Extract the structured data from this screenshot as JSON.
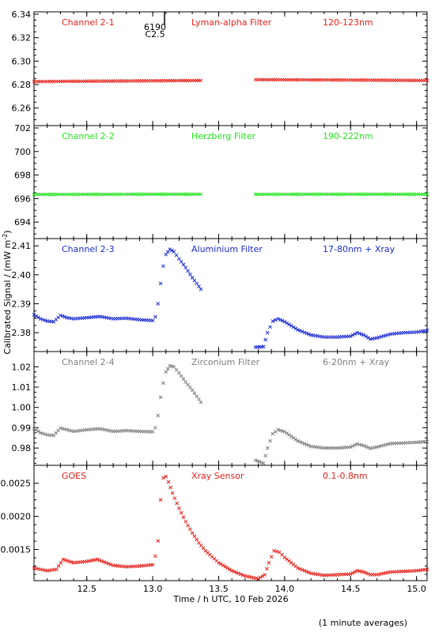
{
  "footer_note": "(1 minute averages)",
  "y_axis_title": "Calibrated Signal / (mW m",
  "y_axis_title_sup": "-2",
  "y_axis_title_end": ")",
  "x_axis_title": "Time / h UTC, 10 Feb 2026",
  "flare_marker": {
    "number": "6190",
    "class": "C2.5"
  },
  "colors": {
    "red": "#e8201a",
    "green": "#22e41e",
    "blue": "#1c2bd6",
    "gray": "#808080"
  },
  "chart_data": {
    "type": "scatter",
    "x_axis": {
      "range": [
        12.1,
        15.08
      ],
      "ticks": [
        "12.5",
        "13.0",
        "13.5",
        "14.0",
        "14.5",
        "15.0"
      ],
      "tick_values": [
        12.5,
        13.0,
        13.5,
        14.0,
        14.5,
        15.0
      ]
    },
    "panels": [
      {
        "id": "ch21",
        "label_left": "Channel 2-1",
        "label_mid": "Lyman-alpha Filter",
        "label_right": "120-123nm",
        "color": "red",
        "y_range": [
          6.245,
          6.342
        ],
        "y_ticks": [
          "6.26",
          "6.28",
          "6.30",
          "6.32",
          "6.34"
        ],
        "y_tick_values": [
          6.26,
          6.28,
          6.3,
          6.32,
          6.34
        ],
        "points": [
          [
            12.1,
            6.2825
          ],
          [
            12.4,
            6.2828
          ],
          [
            12.7,
            6.283
          ],
          [
            13.0,
            6.2832
          ],
          [
            13.38,
            6.2835
          ],
          [
            13.39,
            null
          ],
          [
            13.77,
            null
          ],
          [
            13.78,
            6.2842
          ],
          [
            14.2,
            6.284
          ],
          [
            14.6,
            6.2838
          ],
          [
            15.08,
            6.2835
          ]
        ]
      },
      {
        "id": "ch22",
        "label_left": "Channel 2-2",
        "label_mid": "Herzberg Filter",
        "label_right": "190-222nm",
        "color": "green",
        "y_range": [
          692.6,
          702.2
        ],
        "y_ticks": [
          "694",
          "696",
          "698",
          "700",
          "702"
        ],
        "y_tick_values": [
          694,
          696,
          698,
          700,
          702
        ],
        "points": [
          [
            12.1,
            696.35
          ],
          [
            12.6,
            696.36
          ],
          [
            13.0,
            696.37
          ],
          [
            13.38,
            696.37
          ],
          [
            13.39,
            null
          ],
          [
            13.77,
            null
          ],
          [
            13.78,
            696.36
          ],
          [
            14.3,
            696.37
          ],
          [
            15.08,
            696.37
          ]
        ]
      },
      {
        "id": "ch23",
        "label_left": "Channel 2-3",
        "label_mid": "Aluminium Filter",
        "label_right": "17-80nm + Xray",
        "color": "blue",
        "y_range": [
          2.3735,
          2.4125
        ],
        "y_ticks": [
          "2.38",
          "2.39",
          "2.40",
          "2.41"
        ],
        "y_tick_values": [
          2.38,
          2.39,
          2.4,
          2.41
        ],
        "points": [
          [
            12.1,
            2.3862
          ],
          [
            12.15,
            2.3848
          ],
          [
            12.2,
            2.384
          ],
          [
            12.25,
            2.3838
          ],
          [
            12.3,
            2.386
          ],
          [
            12.35,
            2.3852
          ],
          [
            12.4,
            2.3848
          ],
          [
            12.5,
            2.3852
          ],
          [
            12.6,
            2.3856
          ],
          [
            12.7,
            2.3848
          ],
          [
            12.8,
            2.385
          ],
          [
            12.9,
            2.3845
          ],
          [
            13.0,
            2.3842
          ],
          [
            13.02,
            2.3855
          ],
          [
            13.04,
            2.39
          ],
          [
            13.06,
            2.397
          ],
          [
            13.08,
            2.403
          ],
          [
            13.1,
            2.407
          ],
          [
            13.13,
            2.4088
          ],
          [
            13.16,
            2.408
          ],
          [
            13.2,
            2.4055
          ],
          [
            13.25,
            2.4025
          ],
          [
            13.3,
            2.399
          ],
          [
            13.35,
            2.396
          ],
          [
            13.38,
            2.394
          ],
          [
            13.39,
            null
          ],
          [
            13.77,
            null
          ],
          [
            13.78,
            2.375
          ],
          [
            13.84,
            2.3752
          ],
          [
            13.87,
            2.38
          ],
          [
            13.91,
            2.384
          ],
          [
            13.95,
            2.3848
          ],
          [
            14.0,
            2.3838
          ],
          [
            14.1,
            2.381
          ],
          [
            14.2,
            2.3792
          ],
          [
            14.3,
            2.3785
          ],
          [
            14.4,
            2.3785
          ],
          [
            14.5,
            2.3788
          ],
          [
            14.55,
            2.38
          ],
          [
            14.6,
            2.3792
          ],
          [
            14.65,
            2.3778
          ],
          [
            14.7,
            2.3782
          ],
          [
            14.8,
            2.3795
          ],
          [
            14.9,
            2.38
          ],
          [
            15.0,
            2.3802
          ],
          [
            15.08,
            2.3808
          ]
        ]
      },
      {
        "id": "ch24",
        "label_left": "Channel 2-4",
        "label_mid": "Zirconium Filter",
        "label_right": "6-20nm + Xray",
        "color": "gray",
        "y_range": [
          0.9715,
          1.0275
        ],
        "y_ticks": [
          "0.98",
          "0.99",
          "1.00",
          "1.01",
          "1.02"
        ],
        "y_tick_values": [
          0.98,
          0.99,
          1.0,
          1.01,
          1.02
        ],
        "points": [
          [
            12.1,
            0.9895
          ],
          [
            12.15,
            0.9875
          ],
          [
            12.2,
            0.9865
          ],
          [
            12.25,
            0.9862
          ],
          [
            12.3,
            0.9898
          ],
          [
            12.35,
            0.989
          ],
          [
            12.4,
            0.9882
          ],
          [
            12.5,
            0.989
          ],
          [
            12.6,
            0.9895
          ],
          [
            12.7,
            0.9882
          ],
          [
            12.8,
            0.9886
          ],
          [
            12.9,
            0.9882
          ],
          [
            13.0,
            0.988
          ],
          [
            13.02,
            0.99
          ],
          [
            13.04,
            0.996
          ],
          [
            13.06,
            1.005
          ],
          [
            13.08,
            1.012
          ],
          [
            13.1,
            1.0175
          ],
          [
            13.13,
            1.0205
          ],
          [
            13.16,
            1.02
          ],
          [
            13.2,
            1.017
          ],
          [
            13.25,
            1.0125
          ],
          [
            13.3,
            1.0085
          ],
          [
            13.35,
            1.004
          ],
          [
            13.38,
            1.001
          ],
          [
            13.39,
            null
          ],
          [
            13.77,
            null
          ],
          [
            13.78,
            0.974
          ],
          [
            13.84,
            0.9725
          ],
          [
            13.87,
            0.98
          ],
          [
            13.91,
            0.987
          ],
          [
            13.95,
            0.989
          ],
          [
            14.0,
            0.988
          ],
          [
            14.1,
            0.9835
          ],
          [
            14.2,
            0.9808
          ],
          [
            14.3,
            0.98
          ],
          [
            14.4,
            0.98
          ],
          [
            14.5,
            0.9805
          ],
          [
            14.55,
            0.982
          ],
          [
            14.6,
            0.9812
          ],
          [
            14.65,
            0.9798
          ],
          [
            14.7,
            0.9805
          ],
          [
            14.8,
            0.9822
          ],
          [
            14.9,
            0.9825
          ],
          [
            15.0,
            0.9828
          ],
          [
            15.08,
            0.9832
          ]
        ]
      },
      {
        "id": "goes",
        "label_left": "GOES",
        "label_mid": "Xray Sensor",
        "label_right": "0.1-0.8nm",
        "color": "red",
        "y_range": [
          0.00103,
          0.00277
        ],
        "y_ticks": [
          "0.0015",
          "0.0020",
          "0.0025"
        ],
        "y_tick_values": [
          0.0015,
          0.002,
          0.0025
        ],
        "points": [
          [
            12.1,
            0.00122
          ],
          [
            12.2,
            0.00118
          ],
          [
            12.27,
            0.0012
          ],
          [
            12.32,
            0.00135
          ],
          [
            12.4,
            0.0013
          ],
          [
            12.5,
            0.00132
          ],
          [
            12.58,
            0.00135
          ],
          [
            12.7,
            0.00126
          ],
          [
            12.8,
            0.00124
          ],
          [
            12.9,
            0.00125
          ],
          [
            13.0,
            0.00127
          ],
          [
            13.02,
            0.0014
          ],
          [
            13.04,
            0.00163
          ],
          [
            13.06,
            0.00225
          ],
          [
            13.08,
            0.00258
          ],
          [
            13.1,
            0.0026
          ],
          [
            13.12,
            0.00252
          ],
          [
            13.15,
            0.00235
          ],
          [
            13.2,
            0.00212
          ],
          [
            13.25,
            0.00192
          ],
          [
            13.3,
            0.00175
          ],
          [
            13.35,
            0.0016
          ],
          [
            13.4,
            0.00148
          ],
          [
            13.5,
            0.0013
          ],
          [
            13.6,
            0.00118
          ],
          [
            13.7,
            0.0011
          ],
          [
            13.8,
            0.00106
          ],
          [
            13.85,
            0.00112
          ],
          [
            13.88,
            0.0013
          ],
          [
            13.92,
            0.00148
          ],
          [
            13.96,
            0.00146
          ],
          [
            14.0,
            0.00138
          ],
          [
            14.1,
            0.00122
          ],
          [
            14.2,
            0.00114
          ],
          [
            14.3,
            0.00111
          ],
          [
            14.4,
            0.00112
          ],
          [
            14.5,
            0.00113
          ],
          [
            14.55,
            0.00118
          ],
          [
            14.6,
            0.00116
          ],
          [
            14.65,
            0.00112
          ],
          [
            14.7,
            0.00112
          ],
          [
            14.8,
            0.00116
          ],
          [
            14.9,
            0.00117
          ],
          [
            15.0,
            0.00118
          ],
          [
            15.08,
            0.0012
          ]
        ]
      }
    ]
  }
}
